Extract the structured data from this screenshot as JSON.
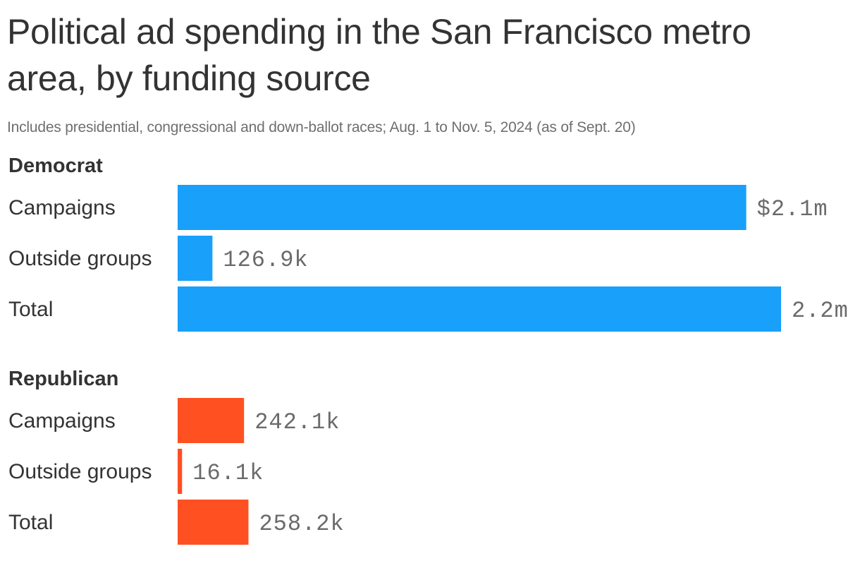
{
  "chart_data": {
    "type": "bar",
    "orientation": "horizontal",
    "title": "Political ad spending in the San Francisco metro area, by funding source",
    "subtitle": "Includes presidential, congressional and down-ballot races; Aug. 1 to Nov. 5, 2024 (as of Sept. 20)",
    "xlim": [
      0,
      2200000
    ],
    "groups": [
      {
        "name": "Democrat",
        "color": "#18a0fb",
        "bars": [
          {
            "label": "Campaigns",
            "value": 2073100,
            "value_label": "$2.1m"
          },
          {
            "label": "Outside groups",
            "value": 126900,
            "value_label": "126.9k"
          },
          {
            "label": "Total",
            "value": 2200000,
            "value_label": "2.2m"
          }
        ]
      },
      {
        "name": "Republican",
        "color": "#ff5022",
        "bars": [
          {
            "label": "Campaigns",
            "value": 242100,
            "value_label": "242.1k"
          },
          {
            "label": "Outside groups",
            "value": 16100,
            "value_label": "16.1k"
          },
          {
            "label": "Total",
            "value": 258200,
            "value_label": "258.2k"
          }
        ]
      }
    ]
  }
}
